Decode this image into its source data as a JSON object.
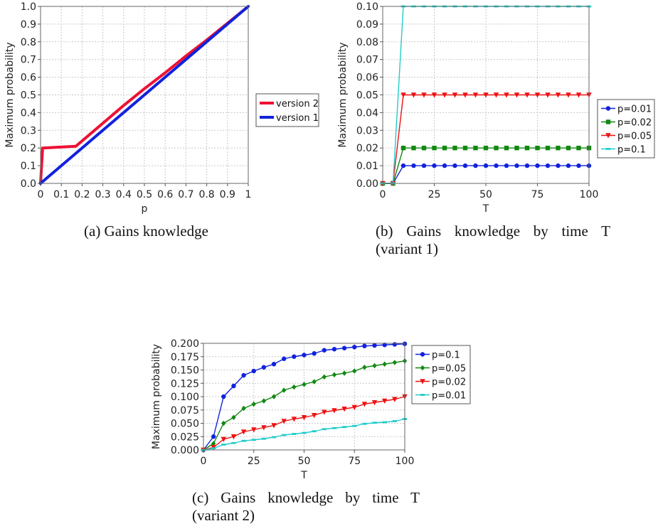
{
  "chart_data": [
    {
      "id": "a",
      "type": "line",
      "caption": "(a) Gains knowledge",
      "xlabel": "p",
      "ylabel": "Maximum probability",
      "xlim": [
        0,
        1
      ],
      "ylim": [
        0,
        1
      ],
      "xticks": [
        "0",
        "0.1",
        "0.2",
        "0.3",
        "0.4",
        "0.5",
        "0.6",
        "0.7",
        "0.8",
        "0.9",
        "1"
      ],
      "yticks": [
        "0.0",
        "0.1",
        "0.2",
        "0.3",
        "0.4",
        "0.5",
        "0.6",
        "0.7",
        "0.8",
        "0.9",
        "1.0"
      ],
      "grid": true,
      "legend_position": "right",
      "series": [
        {
          "name": "version 2",
          "color": "#ee1133",
          "x": [
            0,
            0.01,
            0.17,
            0.3,
            0.4,
            0.5,
            0.6,
            0.7,
            0.8,
            0.9,
            1
          ],
          "y": [
            0,
            0.2,
            0.21,
            0.34,
            0.44,
            0.535,
            0.625,
            0.72,
            0.81,
            0.905,
            1
          ]
        },
        {
          "name": "version 1",
          "color": "#1122dd",
          "x": [
            0,
            1
          ],
          "y": [
            0,
            1
          ]
        }
      ]
    },
    {
      "id": "b",
      "type": "line",
      "caption": "(b) Gains knowledge by time T (variant 1)",
      "xlabel": "T",
      "ylabel": "Maximum probability",
      "xlim": [
        0,
        100
      ],
      "ylim": [
        0,
        0.1
      ],
      "xticks": [
        "0",
        "25",
        "50",
        "75",
        "100"
      ],
      "yticks": [
        "0.00",
        "0.01",
        "0.02",
        "0.03",
        "0.04",
        "0.05",
        "0.06",
        "0.07",
        "0.08",
        "0.09",
        "0.10"
      ],
      "grid": true,
      "legend_position": "right",
      "x": [
        0,
        5,
        10,
        15,
        20,
        25,
        30,
        35,
        40,
        45,
        50,
        55,
        60,
        65,
        70,
        75,
        80,
        85,
        90,
        95,
        100
      ],
      "series": [
        {
          "name": "p=0.01",
          "color": "#1122dd",
          "marker": "circle",
          "values": [
            0,
            0,
            0.01,
            0.01,
            0.01,
            0.01,
            0.01,
            0.01,
            0.01,
            0.01,
            0.01,
            0.01,
            0.01,
            0.01,
            0.01,
            0.01,
            0.01,
            0.01,
            0.01,
            0.01,
            0.01
          ]
        },
        {
          "name": "p=0.02",
          "color": "#118811",
          "marker": "square",
          "values": [
            0,
            0,
            0.02,
            0.02,
            0.02,
            0.02,
            0.02,
            0.02,
            0.02,
            0.02,
            0.02,
            0.02,
            0.02,
            0.02,
            0.02,
            0.02,
            0.02,
            0.02,
            0.02,
            0.02,
            0.02
          ]
        },
        {
          "name": "p=0.05",
          "color": "#ee1111",
          "marker": "triangle-down",
          "values": [
            0,
            0,
            0.05,
            0.05,
            0.05,
            0.05,
            0.05,
            0.05,
            0.05,
            0.05,
            0.05,
            0.05,
            0.05,
            0.05,
            0.05,
            0.05,
            0.05,
            0.05,
            0.05,
            0.05,
            0.05
          ]
        },
        {
          "name": "p=0.1",
          "color": "#22cccc",
          "marker": "dash",
          "values": [
            0,
            0,
            0.1,
            0.1,
            0.1,
            0.1,
            0.1,
            0.1,
            0.1,
            0.1,
            0.1,
            0.1,
            0.1,
            0.1,
            0.1,
            0.1,
            0.1,
            0.1,
            0.1,
            0.1,
            0.1
          ]
        }
      ]
    },
    {
      "id": "c",
      "type": "line",
      "caption": "(c) Gains knowledge by time T (variant 2)",
      "xlabel": "T",
      "ylabel": "Maximum probability",
      "xlim": [
        0,
        100
      ],
      "ylim": [
        0,
        0.2
      ],
      "xticks": [
        "0",
        "25",
        "50",
        "75",
        "100"
      ],
      "yticks": [
        "0.000",
        "0.025",
        "0.050",
        "0.075",
        "0.100",
        "0.125",
        "0.150",
        "0.175",
        "0.200"
      ],
      "grid": true,
      "legend_position": "right",
      "x": [
        0,
        5,
        10,
        15,
        20,
        25,
        30,
        35,
        40,
        45,
        50,
        55,
        60,
        65,
        70,
        75,
        80,
        85,
        90,
        95,
        100
      ],
      "series": [
        {
          "name": "p=0.1",
          "color": "#1122dd",
          "marker": "circle",
          "values": [
            0,
            0.025,
            0.1,
            0.12,
            0.14,
            0.148,
            0.155,
            0.161,
            0.171,
            0.175,
            0.178,
            0.181,
            0.187,
            0.189,
            0.191,
            0.193,
            0.195,
            0.196,
            0.197,
            0.198,
            0.199
          ]
        },
        {
          "name": "p=0.05",
          "color": "#118811",
          "marker": "diamond",
          "values": [
            0,
            0.012,
            0.05,
            0.061,
            0.078,
            0.086,
            0.092,
            0.1,
            0.112,
            0.118,
            0.123,
            0.128,
            0.137,
            0.141,
            0.144,
            0.148,
            0.155,
            0.158,
            0.161,
            0.164,
            0.167
          ]
        },
        {
          "name": "p=0.02",
          "color": "#ee1111",
          "marker": "triangle-down",
          "values": [
            0,
            0.005,
            0.02,
            0.025,
            0.034,
            0.038,
            0.042,
            0.046,
            0.054,
            0.058,
            0.061,
            0.065,
            0.071,
            0.074,
            0.077,
            0.08,
            0.086,
            0.089,
            0.092,
            0.095,
            0.1
          ]
        },
        {
          "name": "p=0.01",
          "color": "#22cccc",
          "marker": "dash",
          "values": [
            0,
            0.003,
            0.01,
            0.013,
            0.017,
            0.019,
            0.021,
            0.024,
            0.028,
            0.03,
            0.032,
            0.035,
            0.039,
            0.041,
            0.043,
            0.045,
            0.049,
            0.051,
            0.052,
            0.054,
            0.058
          ]
        }
      ]
    }
  ]
}
